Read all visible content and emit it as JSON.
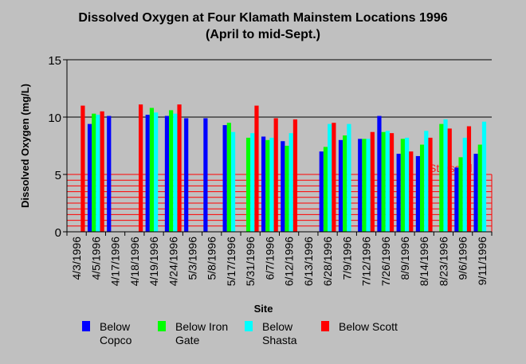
{
  "chart_data": {
    "type": "bar",
    "title": "Dissolved Oxygen at Four Klamath Mainstem Locations 1996",
    "subtitle": "(April to mid-Sept.)",
    "xlabel": "Site",
    "ylabel": "Dissolved Oxygen (mg/L)",
    "ylim": [
      0,
      15
    ],
    "yticks": [
      "0",
      "5",
      "10",
      "15"
    ],
    "grid": true,
    "legend_position": "bottom",
    "categories": [
      "4/3/1996",
      "4/5/1996",
      "4/17/1996",
      "4/18/1996",
      "4/19/1996",
      "4/24/1996",
      "5/3/1996",
      "5/8/1996",
      "5/17/1996",
      "5/31/1996",
      "6/7/1996",
      "6/12/1996",
      "6/13/1996",
      "6/28/1996",
      "7/9/1996",
      "7/12/1996",
      "7/26/1996",
      "8/9/1996",
      "8/14/1996",
      "8/23/1996",
      "9/6/1996",
      "9/11/1996"
    ],
    "series": [
      {
        "name": "Below Copco",
        "legend_lines": [
          "Below",
          "Copco"
        ],
        "color": "#0000ff",
        "values": [
          null,
          9.4,
          10.1,
          null,
          10.2,
          10.1,
          9.9,
          9.9,
          9.3,
          null,
          8.3,
          7.9,
          null,
          7.0,
          8.0,
          8.1,
          10.1,
          6.8,
          6.6,
          null,
          5.6,
          6.8
        ]
      },
      {
        "name": "Below Iron Gate",
        "legend_lines": [
          "Below Iron",
          "Gate"
        ],
        "color": "#00ff00",
        "values": [
          null,
          10.3,
          null,
          null,
          10.8,
          10.6,
          null,
          null,
          9.5,
          8.2,
          8.0,
          7.5,
          null,
          7.4,
          8.4,
          8.1,
          8.7,
          8.1,
          7.6,
          9.4,
          6.5,
          7.6
        ]
      },
      {
        "name": "Below Shasta",
        "legend_lines": [
          "Below",
          "Shasta"
        ],
        "color": "#00ffff",
        "values": [
          null,
          10.2,
          null,
          null,
          10.4,
          10.3,
          null,
          null,
          8.7,
          8.6,
          8.2,
          8.6,
          null,
          9.4,
          9.4,
          8.1,
          8.8,
          8.2,
          8.8,
          9.8,
          8.2,
          9.6
        ]
      },
      {
        "name": "Below Scott",
        "legend_lines": [
          "Below Scott"
        ],
        "color": "#ff0000",
        "values": [
          11.0,
          10.5,
          null,
          11.1,
          null,
          11.1,
          null,
          null,
          null,
          11.0,
          9.9,
          9.8,
          null,
          9.5,
          null,
          8.7,
          8.6,
          7.0,
          8.2,
          9.0,
          9.2,
          null
        ]
      }
    ],
    "stress_band": {
      "label": "Stressful",
      "from": 0,
      "to": 5,
      "color": "#ff0000"
    }
  }
}
